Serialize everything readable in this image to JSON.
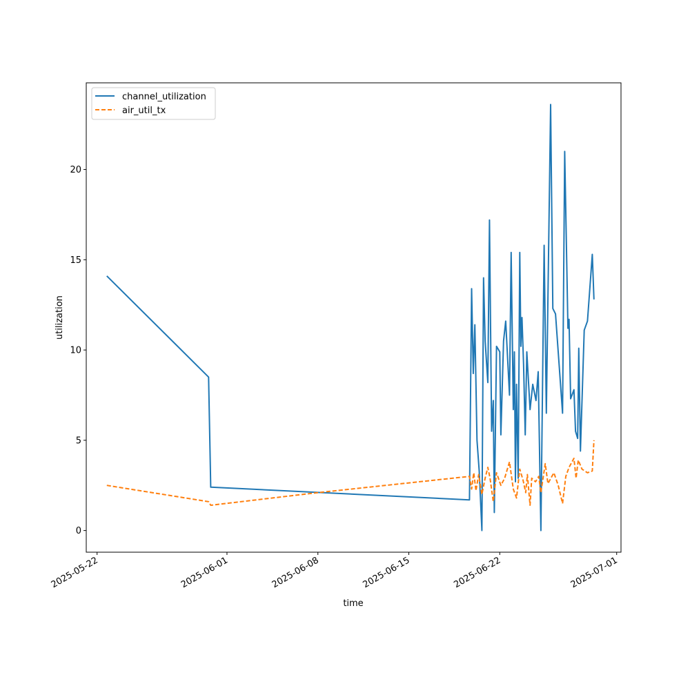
{
  "chart_data": {
    "type": "line",
    "title": "",
    "xlabel": "time",
    "ylabel": "utilization",
    "x_axis_type": "date",
    "xlim": [
      "2025-05-21T04:00",
      "2025-07-01T08:00"
    ],
    "ylim": [
      -1.2,
      24.8
    ],
    "x_ticks": [
      "2025-05-22",
      "2025-06-01",
      "2025-06-08",
      "2025-06-15",
      "2025-06-22",
      "2025-07-01"
    ],
    "y_ticks": [
      0,
      5,
      10,
      15,
      20
    ],
    "grid": false,
    "legend": {
      "position": "top-left",
      "entries": [
        "channel_utilization",
        "air_util_tx"
      ]
    },
    "colors": {
      "channel_utilization": "#1f77b4",
      "air_util_tx": "#ff7f0e"
    },
    "series": [
      {
        "name": "channel_utilization",
        "style": "solid",
        "points": [
          [
            "2025-05-22T18:00",
            14.1
          ],
          [
            "2025-05-30T14:00",
            8.5
          ],
          [
            "2025-05-30T18:00",
            2.4
          ],
          [
            "2025-06-19T16:00",
            1.7
          ],
          [
            "2025-06-19T20:00",
            13.4
          ],
          [
            "2025-06-19T23:00",
            8.7
          ],
          [
            "2025-06-20T02:00",
            11.4
          ],
          [
            "2025-06-20T06:00",
            5.0
          ],
          [
            "2025-06-20T10:00",
            3.3
          ],
          [
            "2025-06-20T15:00",
            0.0
          ],
          [
            "2025-06-20T18:00",
            14.0
          ],
          [
            "2025-06-20T21:00",
            10.5
          ],
          [
            "2025-06-21T02:00",
            8.2
          ],
          [
            "2025-06-21T05:00",
            17.2
          ],
          [
            "2025-06-21T09:00",
            5.5
          ],
          [
            "2025-06-21T12:00",
            7.2
          ],
          [
            "2025-06-21T14:00",
            1.0
          ],
          [
            "2025-06-21T18:00",
            10.2
          ],
          [
            "2025-06-22T00:00",
            9.9
          ],
          [
            "2025-06-22T02:00",
            5.3
          ],
          [
            "2025-06-22T07:00",
            10.5
          ],
          [
            "2025-06-22T11:00",
            11.6
          ],
          [
            "2025-06-22T18:00",
            7.5
          ],
          [
            "2025-06-22T21:00",
            15.4
          ],
          [
            "2025-06-23T01:00",
            6.7
          ],
          [
            "2025-06-23T03:00",
            9.9
          ],
          [
            "2025-06-23T05:00",
            2.7
          ],
          [
            "2025-06-23T07:00",
            8.1
          ],
          [
            "2025-06-23T10:00",
            2.9
          ],
          [
            "2025-06-23T13:00",
            15.4
          ],
          [
            "2025-06-23T15:00",
            10.2
          ],
          [
            "2025-06-23T17:00",
            11.8
          ],
          [
            "2025-06-23T20:00",
            9.2
          ],
          [
            "2025-06-23T23:00",
            5.3
          ],
          [
            "2025-06-24T02:00",
            9.9
          ],
          [
            "2025-06-24T08:00",
            6.7
          ],
          [
            "2025-06-24T13:00",
            8.1
          ],
          [
            "2025-06-24T19:00",
            7.2
          ],
          [
            "2025-06-24T23:00",
            8.8
          ],
          [
            "2025-06-25T04:00",
            0.0
          ],
          [
            "2025-06-25T10:00",
            15.8
          ],
          [
            "2025-06-25T14:00",
            6.5
          ],
          [
            "2025-06-25T22:00",
            23.6
          ],
          [
            "2025-06-26T02:00",
            12.3
          ],
          [
            "2025-06-26T07:00",
            12.0
          ],
          [
            "2025-06-26T20:00",
            6.5
          ],
          [
            "2025-06-27T00:00",
            21.0
          ],
          [
            "2025-06-27T06:00",
            11.2
          ],
          [
            "2025-06-27T08:00",
            11.7
          ],
          [
            "2025-06-27T11:00",
            7.3
          ],
          [
            "2025-06-27T17:00",
            7.8
          ],
          [
            "2025-06-27T20:00",
            5.5
          ],
          [
            "2025-06-28T00:00",
            5.1
          ],
          [
            "2025-06-28T02:00",
            10.1
          ],
          [
            "2025-06-28T05:00",
            4.4
          ],
          [
            "2025-06-28T12:00",
            11.1
          ],
          [
            "2025-06-28T18:00",
            11.6
          ],
          [
            "2025-06-29T03:00",
            15.3
          ],
          [
            "2025-06-29T06:00",
            12.8
          ]
        ]
      },
      {
        "name": "air_util_tx",
        "style": "dashed",
        "points": [
          [
            "2025-05-22T18:00",
            2.5
          ],
          [
            "2025-05-30T14:00",
            1.6
          ],
          [
            "2025-05-30T18:00",
            1.4
          ],
          [
            "2025-06-08T00:00",
            2.1
          ],
          [
            "2025-06-19T16:00",
            3.0
          ],
          [
            "2025-06-19T20:00",
            2.3
          ],
          [
            "2025-06-20T00:00",
            3.2
          ],
          [
            "2025-06-20T04:00",
            2.2
          ],
          [
            "2025-06-20T09:00",
            3.1
          ],
          [
            "2025-06-20T15:00",
            2.0
          ],
          [
            "2025-06-20T21:00",
            2.9
          ],
          [
            "2025-06-21T02:00",
            3.5
          ],
          [
            "2025-06-21T06:00",
            2.9
          ],
          [
            "2025-06-21T12:00",
            1.6
          ],
          [
            "2025-06-21T18:00",
            3.2
          ],
          [
            "2025-06-22T02:00",
            2.5
          ],
          [
            "2025-06-22T09:00",
            2.9
          ],
          [
            "2025-06-22T18:00",
            3.8
          ],
          [
            "2025-06-23T01:00",
            2.3
          ],
          [
            "2025-06-23T07:00",
            1.8
          ],
          [
            "2025-06-23T13:00",
            3.4
          ],
          [
            "2025-06-23T19:00",
            2.8
          ],
          [
            "2025-06-24T00:00",
            2.1
          ],
          [
            "2025-06-24T03:00",
            3.1
          ],
          [
            "2025-06-24T08:00",
            1.4
          ],
          [
            "2025-06-24T11:00",
            2.9
          ],
          [
            "2025-06-24T18:00",
            2.7
          ],
          [
            "2025-06-25T00:00",
            3.0
          ],
          [
            "2025-06-25T04:00",
            2.1
          ],
          [
            "2025-06-25T12:00",
            3.7
          ],
          [
            "2025-06-25T17:00",
            2.6
          ],
          [
            "2025-06-26T04:00",
            3.2
          ],
          [
            "2025-06-26T12:00",
            2.5
          ],
          [
            "2025-06-26T20:00",
            1.5
          ],
          [
            "2025-06-27T02:00",
            3.0
          ],
          [
            "2025-06-27T08:00",
            3.5
          ],
          [
            "2025-06-27T17:00",
            4.0
          ],
          [
            "2025-06-27T21:00",
            2.9
          ],
          [
            "2025-06-28T01:00",
            3.9
          ],
          [
            "2025-06-28T08:00",
            3.4
          ],
          [
            "2025-06-28T18:00",
            3.2
          ],
          [
            "2025-06-29T03:00",
            3.3
          ],
          [
            "2025-06-29T06:00",
            5.0
          ]
        ]
      }
    ]
  }
}
